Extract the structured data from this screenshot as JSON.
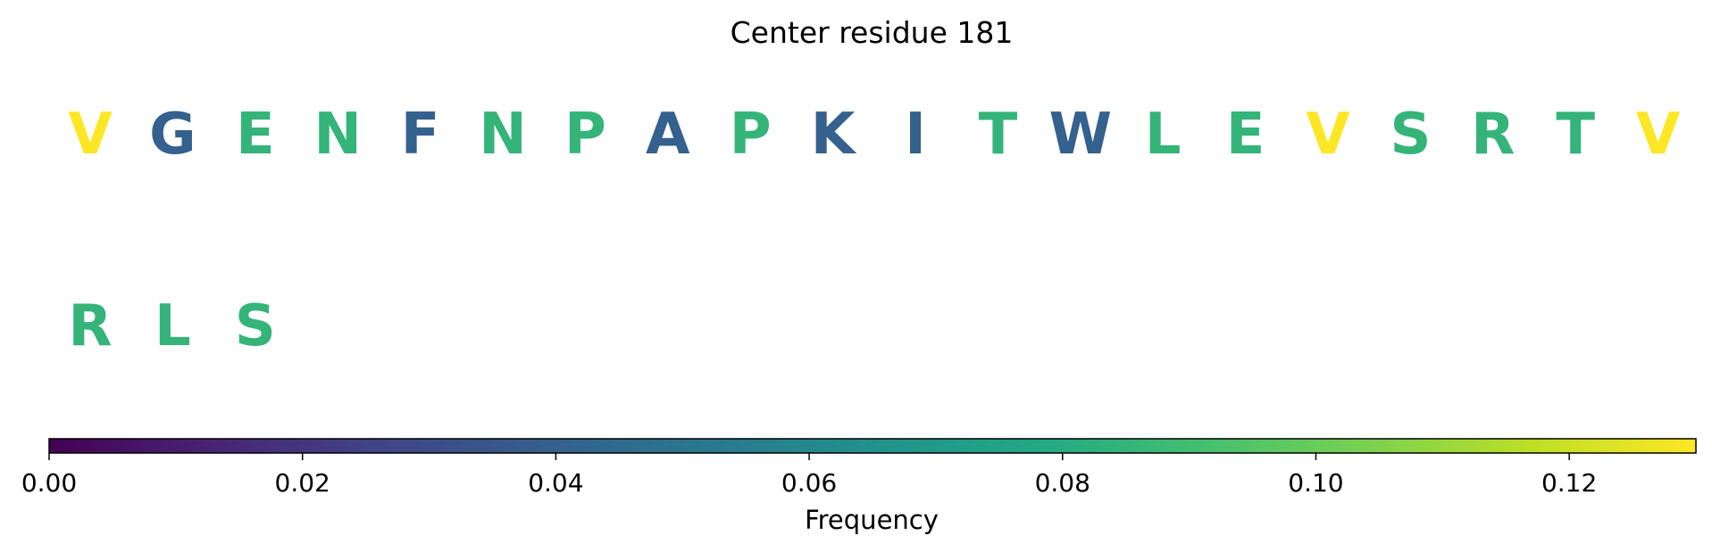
{
  "chart_data": {
    "type": "sequence-logo",
    "title": "Center residue 181",
    "rows": [
      {
        "residues": [
          "V",
          "G",
          "E",
          "N",
          "F",
          "N",
          "P",
          "A",
          "P",
          "K",
          "I",
          "T",
          "W",
          "L",
          "E",
          "V",
          "S",
          "R",
          "T",
          "V"
        ],
        "frequencies": [
          0.13,
          0.04,
          0.085,
          0.085,
          0.04,
          0.085,
          0.085,
          0.04,
          0.085,
          0.04,
          0.04,
          0.085,
          0.04,
          0.085,
          0.085,
          0.13,
          0.085,
          0.085,
          0.085,
          0.13
        ]
      },
      {
        "residues": [
          "R",
          "L",
          "S"
        ],
        "frequencies": [
          0.085,
          0.085,
          0.085
        ]
      }
    ],
    "colorbar": {
      "label": "Frequency",
      "colormap": "viridis",
      "range": [
        0,
        0.13
      ],
      "ticks": [
        0.0,
        0.02,
        0.04,
        0.06,
        0.08,
        0.1,
        0.12
      ],
      "tick_labels": [
        "0.00",
        "0.02",
        "0.04",
        "0.06",
        "0.08",
        "0.10",
        "0.12"
      ]
    }
  }
}
